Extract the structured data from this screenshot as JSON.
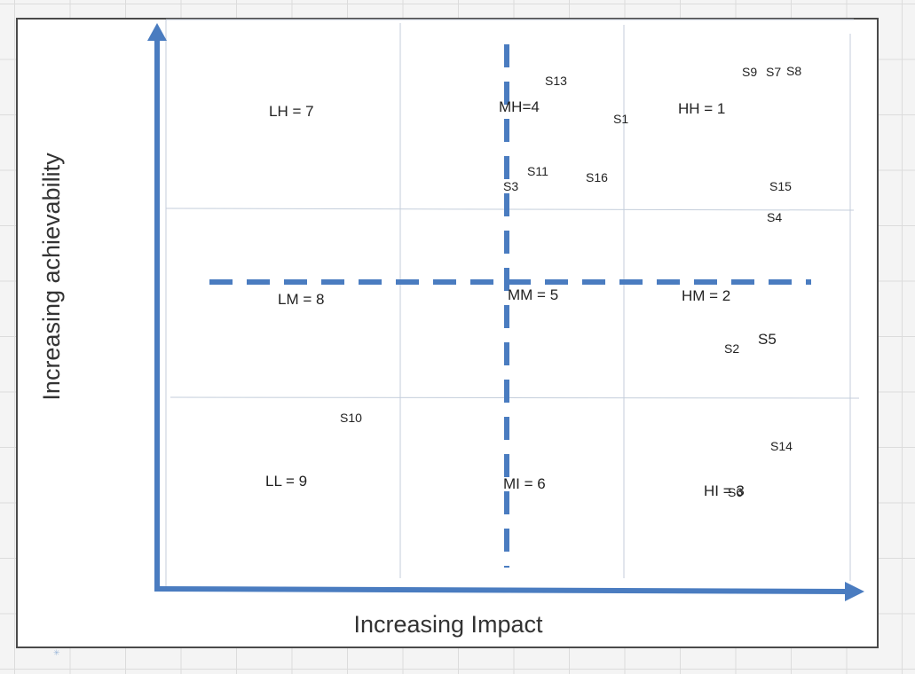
{
  "axes": {
    "x_title": "Increasing Impact",
    "y_title": "Increasing achievability"
  },
  "quadrants": [
    {
      "id": "lh",
      "label": "LH = 7"
    },
    {
      "id": "mh",
      "label": "MH=4"
    },
    {
      "id": "hh",
      "label": "HH = 1"
    },
    {
      "id": "lm",
      "label": "LM = 8"
    },
    {
      "id": "mm",
      "label": "MM = 5"
    },
    {
      "id": "hm",
      "label": "HM = 2"
    },
    {
      "id": "ll",
      "label": "LL = 9"
    },
    {
      "id": "ml",
      "label": "MI = 6"
    },
    {
      "id": "hl",
      "label": "HI = 3"
    }
  ],
  "scenarios": [
    {
      "id": "s1",
      "label": "S1"
    },
    {
      "id": "s2",
      "label": "S2"
    },
    {
      "id": "s3",
      "label": "S3"
    },
    {
      "id": "s4",
      "label": "S4"
    },
    {
      "id": "s5",
      "label": "S5"
    },
    {
      "id": "s6",
      "label": "S6"
    },
    {
      "id": "s7",
      "label": "S7"
    },
    {
      "id": "s8",
      "label": "S8"
    },
    {
      "id": "s9",
      "label": "S9"
    },
    {
      "id": "s10",
      "label": "S10"
    },
    {
      "id": "s11",
      "label": "S11"
    },
    {
      "id": "s13",
      "label": "S13"
    },
    {
      "id": "s14",
      "label": "S14"
    },
    {
      "id": "s15",
      "label": "S15"
    },
    {
      "id": "s16",
      "label": "S16"
    }
  ],
  "colors": {
    "axis": "#4a7cc0",
    "divider": "#4a7cc0",
    "grid_line": "#c4cedb"
  }
}
